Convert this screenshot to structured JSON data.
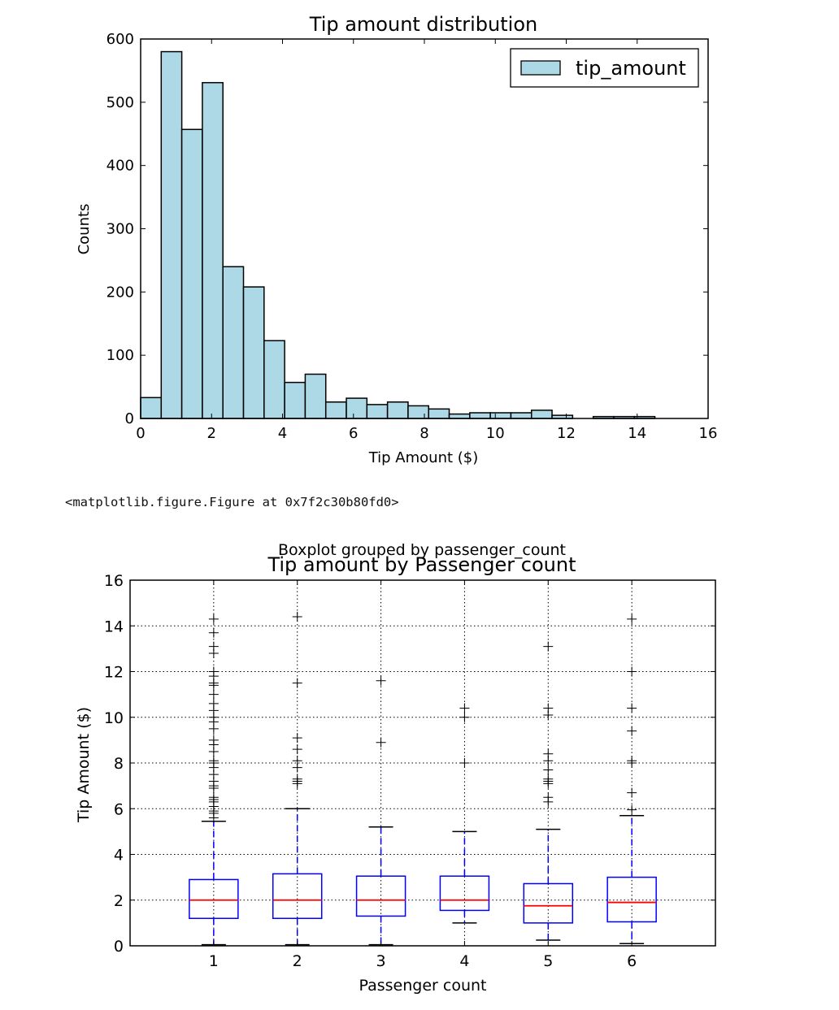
{
  "chart_data": [
    {
      "type": "bar",
      "title": "Tip amount distribution",
      "xlabel": "Tip Amount ($)",
      "ylabel": "Counts",
      "xlim": [
        0,
        16
      ],
      "ylim": [
        0,
        600
      ],
      "xticks": [
        "0",
        "2",
        "4",
        "6",
        "8",
        "10",
        "12",
        "14",
        "16"
      ],
      "yticks": [
        "0",
        "100",
        "200",
        "300",
        "400",
        "500",
        "600"
      ],
      "bin_edges": [
        0,
        0.58,
        1.16,
        1.74,
        2.32,
        2.9,
        3.48,
        4.06,
        4.64,
        5.22,
        5.8,
        6.38,
        6.96,
        7.54,
        8.12,
        8.7,
        9.28,
        9.86,
        10.44,
        11.02,
        11.6,
        12.18,
        12.76,
        13.34,
        13.92,
        14.5
      ],
      "counts": [
        33,
        580,
        457,
        531,
        240,
        208,
        123,
        57,
        70,
        26,
        32,
        22,
        26,
        20,
        15,
        7,
        9,
        9,
        9,
        13,
        5,
        0,
        3,
        3,
        3
      ],
      "legend": [
        "tip_amount"
      ],
      "legend_position": "top-right",
      "bar_color": "#add8e6",
      "grid": false
    },
    {
      "type": "box",
      "suptitle": "Boxplot grouped by passenger_count",
      "title": "Tip amount by Passenger count",
      "xlabel": "Passenger count",
      "ylabel": "Tip Amount ($)",
      "ylim": [
        0,
        16
      ],
      "yticks": [
        "0",
        "2",
        "4",
        "6",
        "8",
        "10",
        "12",
        "14",
        "16"
      ],
      "categories": [
        "1",
        "2",
        "3",
        "4",
        "5",
        "6"
      ],
      "grid": true,
      "box_color": "#0000ff",
      "median_color": "#ff0000",
      "boxes": [
        {
          "whislo": 0.05,
          "q1": 1.2,
          "med": 2.0,
          "q3": 2.9,
          "whishi": 5.45,
          "fliers": [
            5.6,
            5.8,
            5.9,
            6.1,
            6.3,
            6.4,
            6.5,
            6.9,
            7.0,
            7.2,
            7.5,
            7.8,
            8.0,
            8.1,
            8.5,
            8.8,
            9.0,
            9.5,
            9.8,
            10.0,
            10.3,
            10.6,
            11.0,
            11.4,
            11.5,
            11.8,
            12.0,
            12.8,
            13.1,
            13.7,
            14.3
          ]
        },
        {
          "whislo": 0.05,
          "q1": 1.2,
          "med": 2.0,
          "q3": 3.15,
          "whishi": 6.0,
          "fliers": [
            7.1,
            7.2,
            7.3,
            7.8,
            8.1,
            8.6,
            9.1,
            11.5,
            14.4
          ]
        },
        {
          "whislo": 0.05,
          "q1": 1.3,
          "med": 2.0,
          "q3": 3.05,
          "whishi": 5.2,
          "fliers": [
            8.9,
            11.6
          ]
        },
        {
          "whislo": 1.0,
          "q1": 1.55,
          "med": 2.0,
          "q3": 3.05,
          "whishi": 5.0,
          "fliers": [
            8.0,
            10.0,
            10.4
          ]
        },
        {
          "whislo": 0.25,
          "q1": 1.0,
          "med": 1.75,
          "q3": 2.72,
          "whishi": 5.1,
          "fliers": [
            6.3,
            6.5,
            7.1,
            7.2,
            7.3,
            7.7,
            8.1,
            8.4,
            10.1,
            10.4,
            13.1
          ]
        },
        {
          "whislo": 0.1,
          "q1": 1.05,
          "med": 1.9,
          "q3": 3.0,
          "whishi": 5.7,
          "fliers": [
            5.95,
            6.7,
            8.0,
            8.1,
            9.4,
            10.4,
            12.0,
            14.3
          ]
        }
      ]
    }
  ],
  "output_text": "<matplotlib.figure.Figure at 0x7f2c30b80fd0>"
}
